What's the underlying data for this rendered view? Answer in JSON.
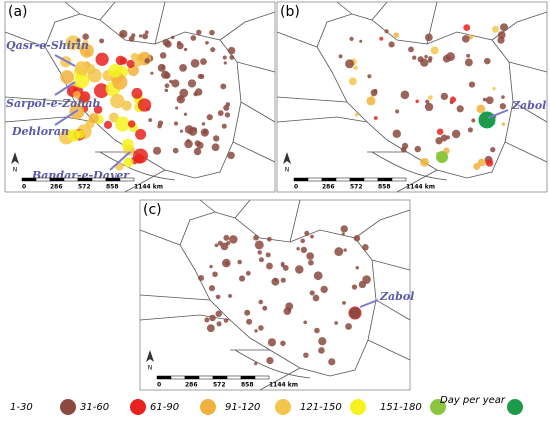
{
  "panels": [
    {
      "label": "(a)",
      "places": [
        "Qasr-e-Shirin",
        "Sarpol-e-Zahab",
        "Dehloran",
        "Bandar-e-Dayer"
      ]
    },
    {
      "label": "(b)",
      "places": [
        "Zabol"
      ]
    },
    {
      "label": "(c)",
      "places": [
        "Zabol"
      ]
    }
  ],
  "north": "N",
  "scale_bar": [
    "0",
    "286",
    "572",
    "858",
    "1144 km"
  ],
  "legend": {
    "items": [
      {
        "label": "1-30",
        "color": "#8b4a3f"
      },
      {
        "label": "31-60",
        "color": "#e8231f"
      },
      {
        "label": "61-90",
        "color": "#f2b13c"
      },
      {
        "label": "91-120",
        "color": "#f3c54a"
      },
      {
        "label": "121-150",
        "color": "#f5f21e"
      },
      {
        "label": "151-180",
        "color": "#8cc63f"
      },
      {
        "label": "Day per year",
        "color": "#1f9a4a"
      }
    ]
  }
}
